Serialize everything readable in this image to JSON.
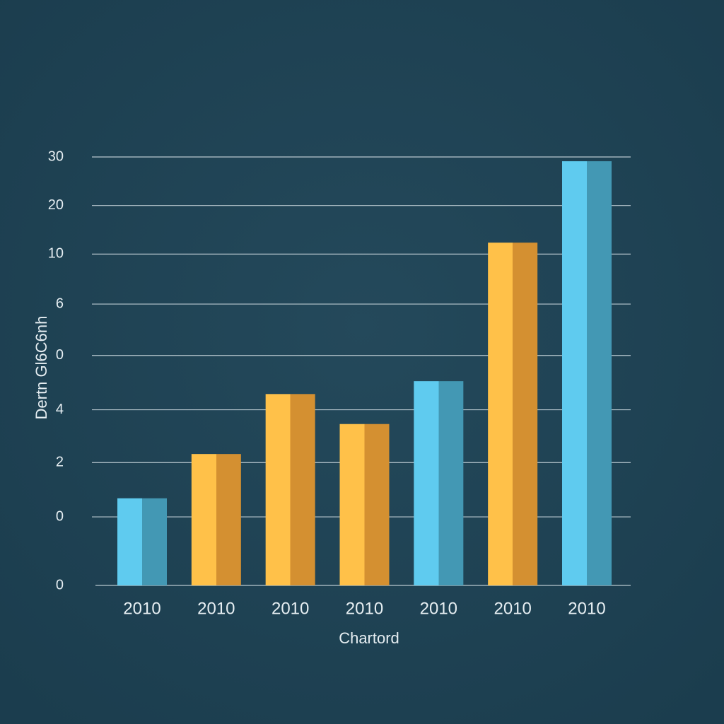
{
  "chart_data": {
    "type": "bar",
    "x_label": "Chartord",
    "y_label": "Dertn Gl6C6nh",
    "categories": [
      "2010",
      "2010",
      "2010",
      "2010",
      "2010",
      "2010",
      "2010"
    ],
    "values": [
      6.1,
      9.2,
      13.4,
      11.3,
      14.3,
      24.0,
      29.7
    ],
    "colors": [
      "#4fb3d4",
      "#f9a93a",
      "#f9a93a",
      "#f9a93a",
      "#4fb3d4",
      "#f9a93a",
      "#4fb3d4"
    ],
    "ylim": [
      0,
      30
    ],
    "yticks": [
      0,
      {
        "value": 4.8,
        "label": "0"
      },
      {
        "value": 8.6,
        "label": "2"
      },
      {
        "value": 12.3,
        "label": "4"
      },
      {
        "value": 16.1,
        "label": "0"
      },
      {
        "value": 19.7,
        "label": "6"
      },
      {
        "value": 23.2,
        "label": "10"
      },
      {
        "value": 26.6,
        "label": "20"
      },
      30
    ],
    "grid": true
  }
}
